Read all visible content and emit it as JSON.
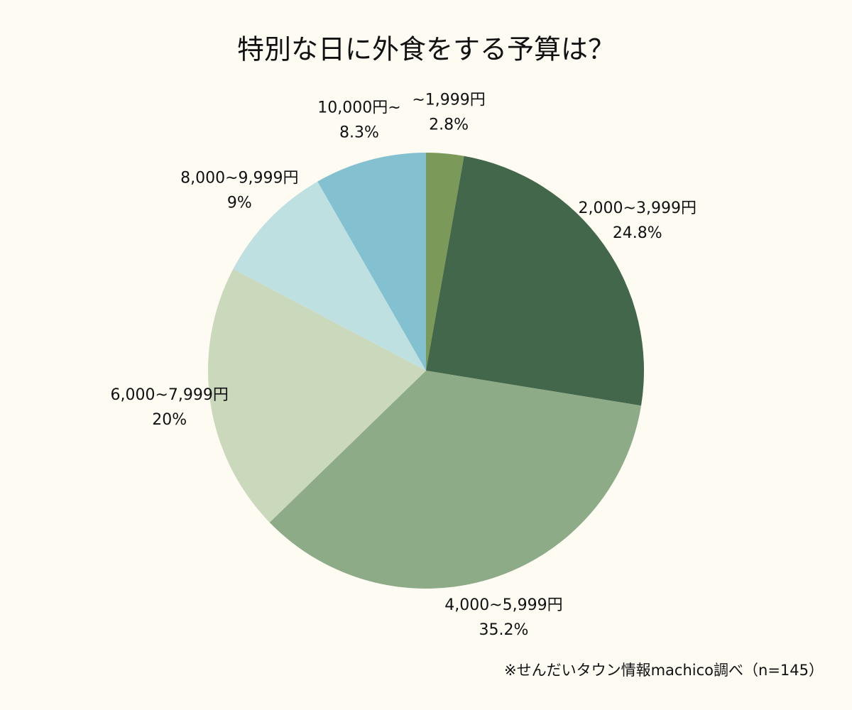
{
  "chart_data": {
    "type": "pie",
    "title": "特別な日に外食をする予算は？",
    "categories": [
      "~1,999円",
      "2,000~3,999円",
      "4,000~5,999円",
      "6,000~7,999円",
      "8,000~9,999円",
      "10,000円~"
    ],
    "values": [
      2.8,
      24.8,
      35.2,
      20,
      9,
      8.3
    ],
    "value_labels": [
      "2.8%",
      "24.8%",
      "35.2%",
      "20%",
      "9%",
      "8.3%"
    ],
    "colors": [
      "#7b9a59",
      "#43674a",
      "#8dab87",
      "#cad8bb",
      "#bfe0e0",
      "#84c1d0"
    ],
    "note": "※せんだいタウン情報machico調べ（n=145）"
  }
}
